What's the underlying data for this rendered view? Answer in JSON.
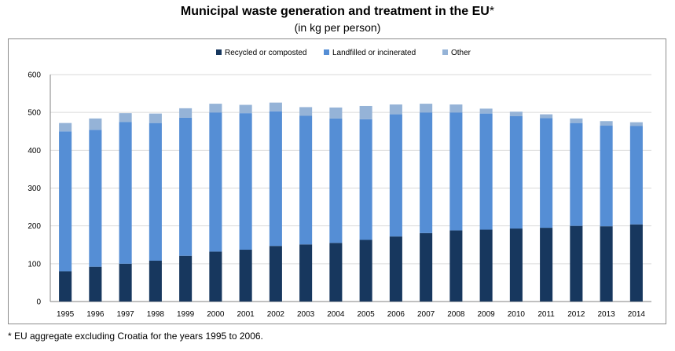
{
  "chart_data": {
    "type": "bar",
    "stacked": true,
    "title": "Municipal waste generation and treatment in the EU",
    "title_suffix": "*",
    "subtitle": "(in kg per person)",
    "footnote": "* EU aggregate excluding Croatia for the years 1995 to 2006.",
    "categories": [
      "1995",
      "1996",
      "1997",
      "1998",
      "1999",
      "2000",
      "2001",
      "2002",
      "2003",
      "2004",
      "2005",
      "2006",
      "2007",
      "2008",
      "2009",
      "2010",
      "2011",
      "2012",
      "2013",
      "2014"
    ],
    "series": [
      {
        "name": "Recycled or composted",
        "color": "#17375e",
        "values": [
          80,
          92,
          100,
          108,
          121,
          132,
          137,
          147,
          151,
          155,
          163,
          172,
          181,
          188,
          190,
          193,
          195,
          200,
          199,
          204
        ]
      },
      {
        "name": "Landfilled or incinerated",
        "color": "#558ed5",
        "values": [
          370,
          362,
          375,
          364,
          365,
          368,
          361,
          356,
          340,
          329,
          319,
          323,
          319,
          312,
          307,
          297,
          290,
          272,
          266,
          260
        ]
      },
      {
        "name": "Other",
        "color": "#95b3d7",
        "values": [
          22,
          30,
          23,
          25,
          25,
          23,
          22,
          23,
          23,
          29,
          35,
          26,
          23,
          21,
          13,
          12,
          10,
          12,
          12,
          10
        ]
      }
    ],
    "ylim": [
      0,
      600
    ],
    "yticks": [
      0,
      100,
      200,
      300,
      400,
      500,
      600
    ],
    "grid": true,
    "legend_position": "top-center"
  }
}
